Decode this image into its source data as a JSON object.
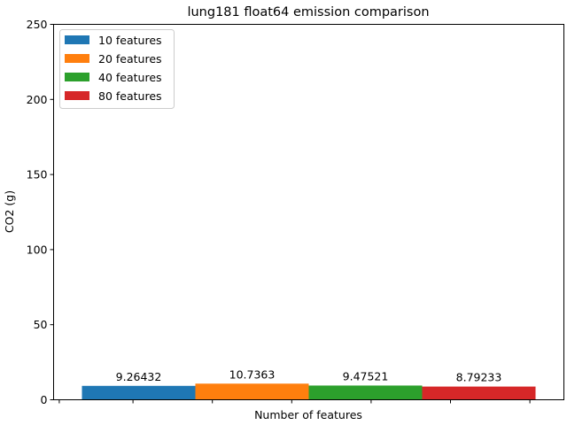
{
  "chart_data": {
    "type": "bar",
    "title": "lung181 float64 emission comparison",
    "xlabel": "Number of features",
    "ylabel": "CO2 (g)",
    "ylim": [
      0,
      250
    ],
    "yticks": [
      0,
      50,
      100,
      150,
      200,
      250
    ],
    "grid": false,
    "legend_position": "top-left",
    "series": [
      {
        "name": "10 features",
        "value": 9.26432,
        "label": "9.26432",
        "color": "#1f77b4"
      },
      {
        "name": "20 features",
        "value": 10.7363,
        "label": "10.7363",
        "color": "#ff7f0e"
      },
      {
        "name": "40 features",
        "value": 9.47521,
        "label": "9.47521",
        "color": "#2ca02c"
      },
      {
        "name": "80 features",
        "value": 8.79233,
        "label": "8.79233",
        "color": "#d62728"
      }
    ]
  }
}
